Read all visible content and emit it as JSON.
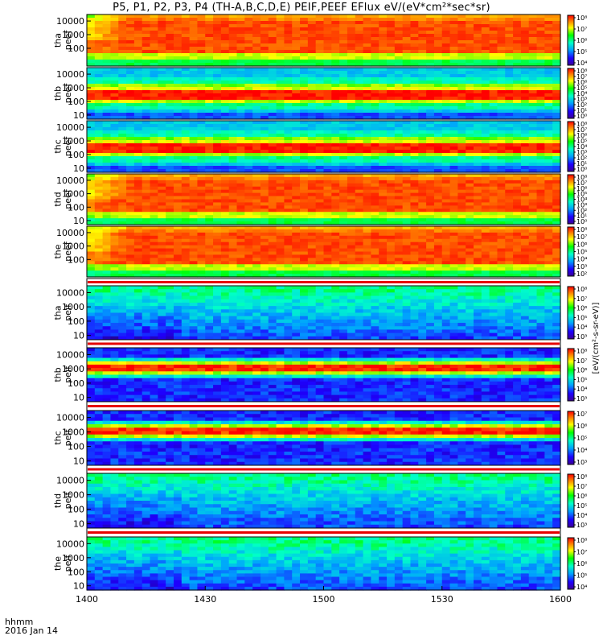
{
  "title": "P5, P1, P2, P3, P4 (TH-A,B,C,D,E) PEIF,PEEF EFlux eV/(eV*cm²*sec*sr)",
  "footer": {
    "time_label": "hhmm",
    "date_label": "2016 Jan 14"
  },
  "colorbar_unit": "[eV/(cm²-s-sr-eV)]",
  "colors": {
    "background": "#ffffff",
    "frame": "#000000",
    "separator_red": "#e60000",
    "separator_yellow": "#ffe600"
  },
  "chart_data": {
    "type": "heatmap",
    "colormap": "rainbow (purple-blue-cyan-green-yellow-red)",
    "x": {
      "ticks": [
        "1400",
        "1430",
        "1500",
        "1530",
        "1600"
      ],
      "range": [
        "14:00",
        "16:00"
      ]
    },
    "panels": [
      {
        "id": "tha-peef",
        "label": "tha\npeef",
        "y_ticks": [
          "10000",
          "1000",
          "100"
        ],
        "ylim": [
          5,
          30000
        ],
        "y_scale": "log",
        "cbar_ticks": [
          "10⁸",
          "10⁷",
          "10⁶",
          "10⁵",
          "10⁴"
        ]
      },
      {
        "id": "thb-peef",
        "label": "thb\npeef",
        "y_ticks": [
          "10000",
          "1000",
          "100",
          "10"
        ],
        "ylim": [
          5,
          30000
        ],
        "y_scale": "log",
        "cbar_ticks": [
          "10⁸",
          "10⁷",
          "10⁶",
          "10⁵",
          "10⁴",
          "10³",
          "10²",
          "10¹",
          "10⁰"
        ]
      },
      {
        "id": "thc-peef",
        "label": "thc\npeef",
        "y_ticks": [
          "10000",
          "1000",
          "100",
          "10"
        ],
        "ylim": [
          5,
          30000
        ],
        "y_scale": "log",
        "cbar_ticks": [
          "10⁸",
          "10⁷",
          "10⁶",
          "10⁵",
          "10⁴",
          "10³",
          "10²",
          "10¹",
          "10⁰"
        ]
      },
      {
        "id": "thd-peef",
        "label": "thd\npeef",
        "y_ticks": [
          "10000",
          "1000",
          "100",
          "10"
        ],
        "ylim": [
          5,
          30000
        ],
        "y_scale": "log",
        "cbar_ticks": [
          "10⁸",
          "10⁷",
          "10⁶",
          "10⁵",
          "10⁴",
          "10³",
          "10²",
          "10¹",
          "10⁰"
        ]
      },
      {
        "id": "the-peef",
        "label": "the\npeef",
        "y_ticks": [
          "10000",
          "1000",
          "100"
        ],
        "ylim": [
          5,
          30000
        ],
        "y_scale": "log",
        "cbar_ticks": [
          "10⁸",
          "10⁷",
          "10⁶",
          "10⁵",
          "10⁴",
          "10³",
          "10²"
        ]
      },
      {
        "id": "tha-peif",
        "label": "tha\npeif",
        "y_ticks": [
          "10000",
          "1000",
          "100",
          "10"
        ],
        "ylim": [
          5,
          30000
        ],
        "y_scale": "log",
        "cbar_ticks": [
          "10⁸",
          "10⁷",
          "10⁶",
          "10⁵",
          "10⁴",
          "10³"
        ]
      },
      {
        "id": "thb-peif",
        "label": "thb\npeif",
        "y_ticks": [
          "10000",
          "1000",
          "100",
          "10"
        ],
        "ylim": [
          5,
          30000
        ],
        "y_scale": "log",
        "cbar_ticks": [
          "10⁸",
          "10⁷",
          "10⁶",
          "10⁵",
          "10⁴",
          "10³"
        ]
      },
      {
        "id": "thc-peif",
        "label": "thc\npeif",
        "y_ticks": [
          "10000",
          "1000",
          "100",
          "10"
        ],
        "ylim": [
          5,
          30000
        ],
        "y_scale": "log",
        "cbar_ticks": [
          "10⁷",
          "10⁶",
          "10⁵",
          "10⁴",
          "10³"
        ]
      },
      {
        "id": "thd-peif",
        "label": "thd\npeif",
        "y_ticks": [
          "10000",
          "1000",
          "100",
          "10"
        ],
        "ylim": [
          5,
          30000
        ],
        "y_scale": "log",
        "cbar_ticks": [
          "10⁸",
          "10⁷",
          "10⁶",
          "10⁵",
          "10⁴",
          "10³"
        ]
      },
      {
        "id": "the-peif",
        "label": "the\npeif",
        "y_ticks": [
          "10000",
          "1000",
          "100",
          "10"
        ],
        "ylim": [
          5,
          30000
        ],
        "y_scale": "log",
        "cbar_ticks": [
          "10⁸",
          "10⁷",
          "10⁶",
          "10⁵",
          "10⁴"
        ]
      }
    ]
  }
}
